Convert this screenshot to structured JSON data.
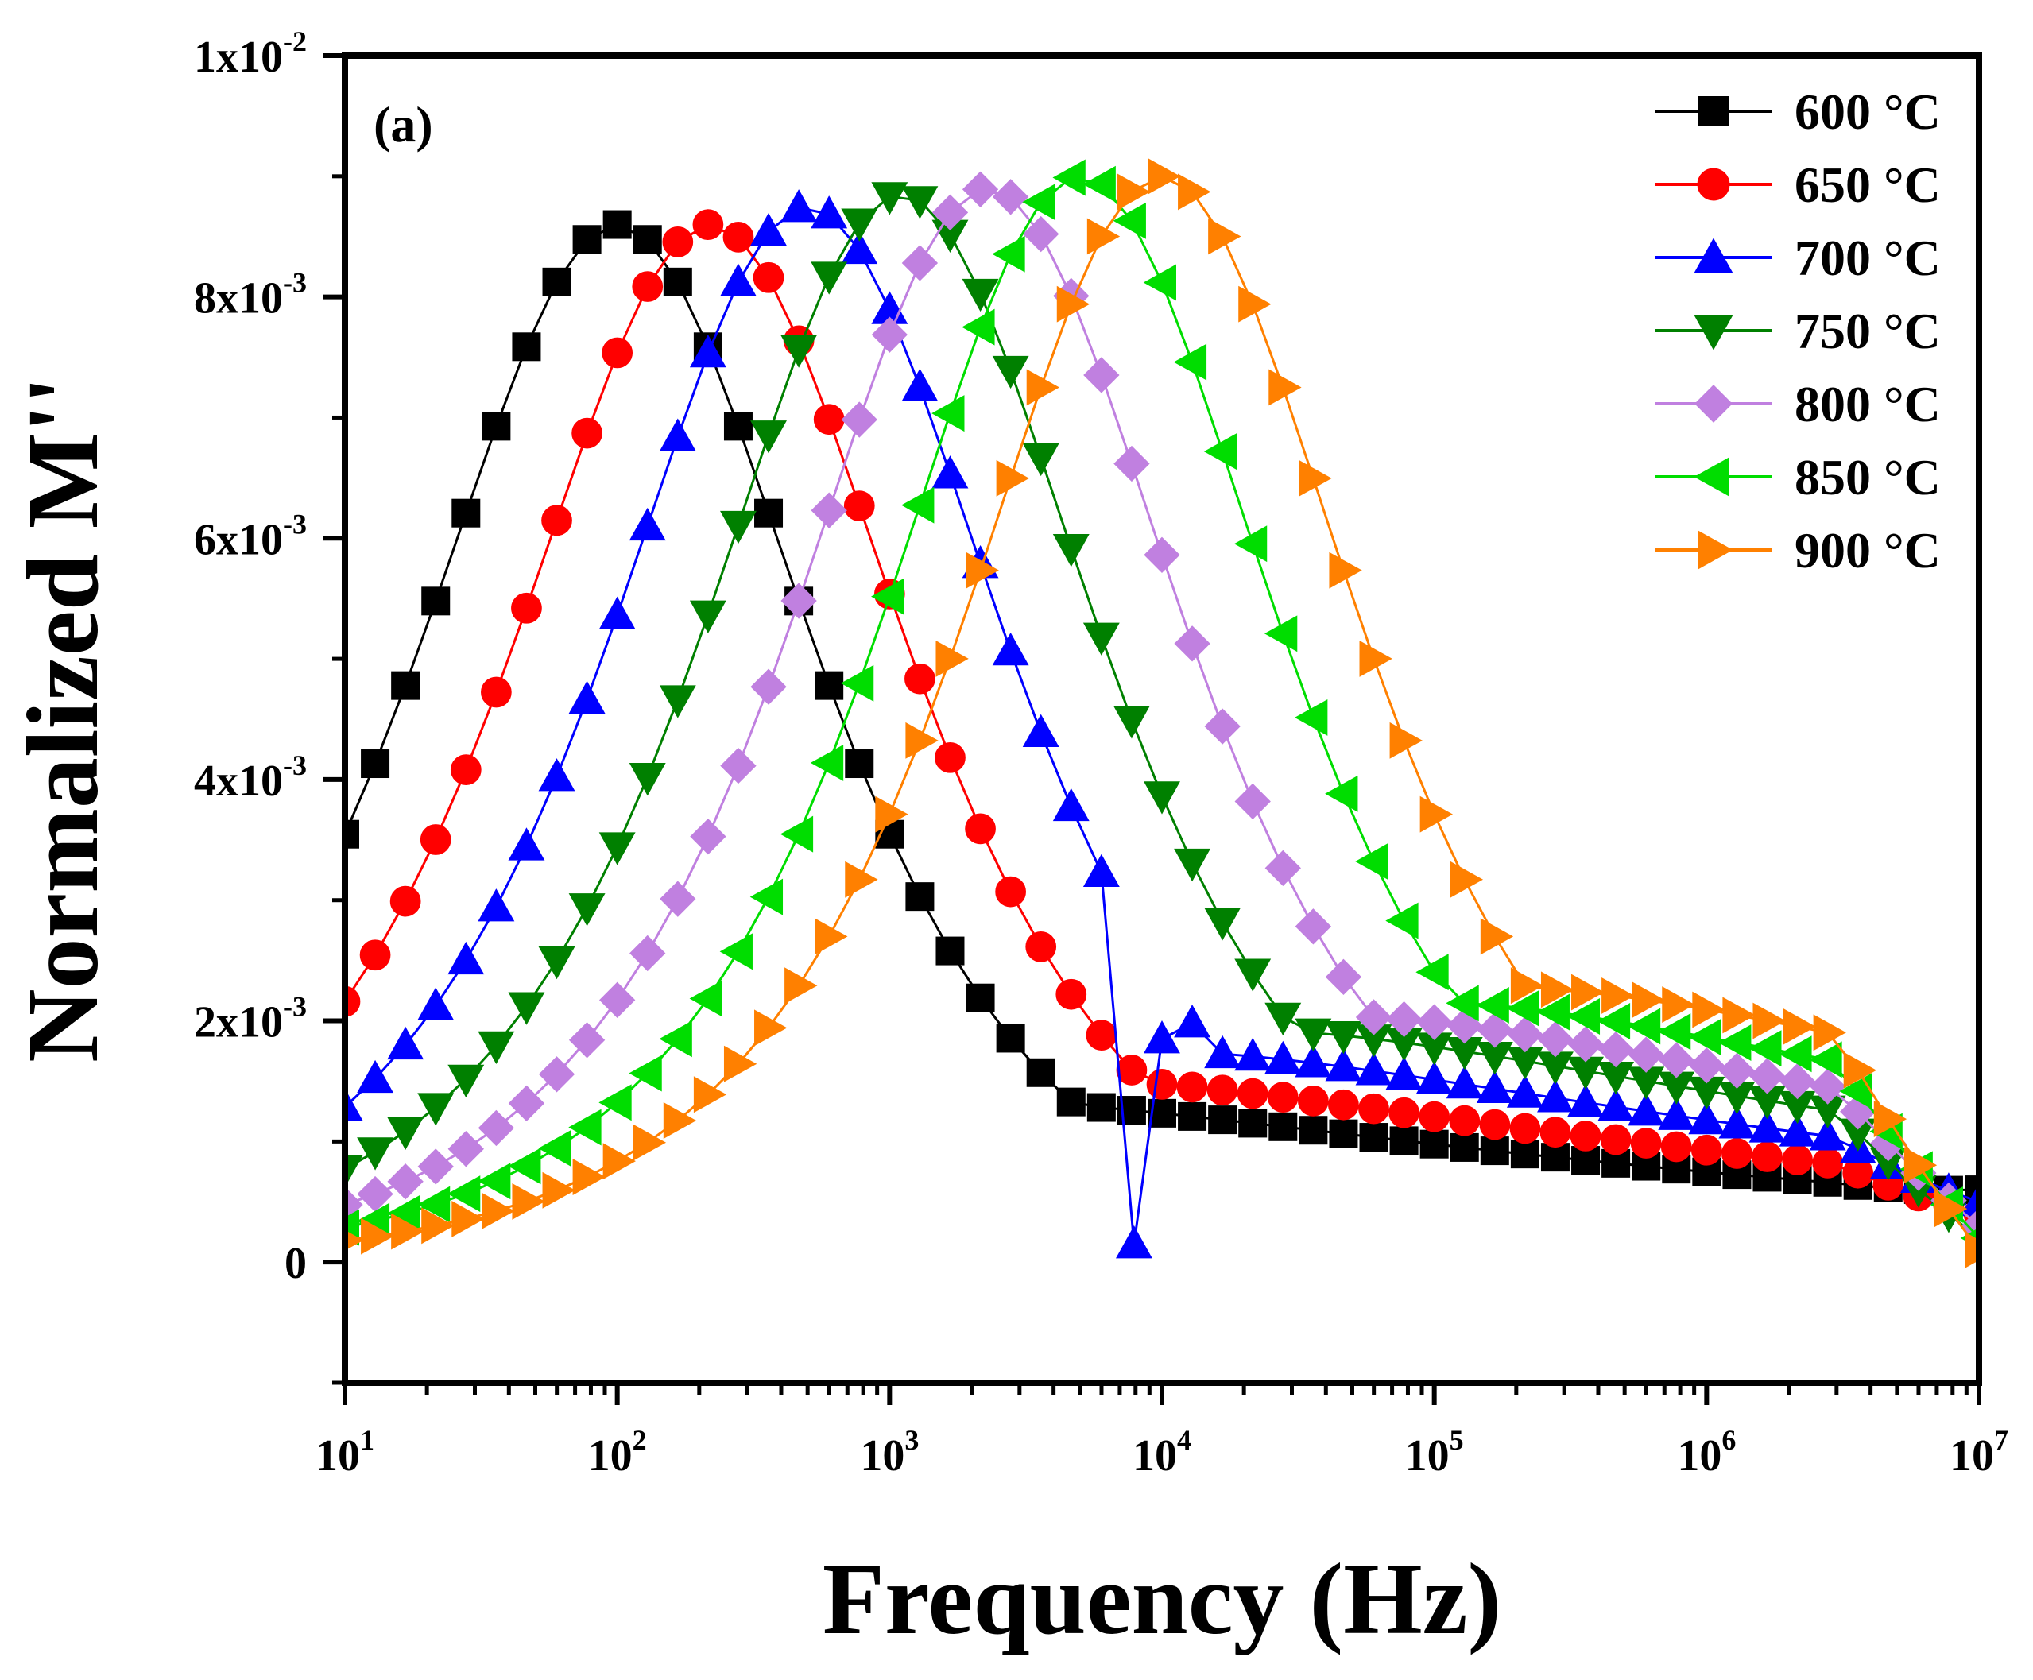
{
  "chart_data": {
    "type": "line",
    "title": "",
    "panel_label": "(a)",
    "xlabel": "Frequency (Hz)",
    "ylabel": "Normalized M''",
    "xscale": "log",
    "xlim": [
      10,
      10000000
    ],
    "ylim": [
      -0.001,
      0.01
    ],
    "x_ticks": [
      {
        "value": 10,
        "base": "10",
        "exp": "1"
      },
      {
        "value": 100,
        "base": "10",
        "exp": "2"
      },
      {
        "value": 1000,
        "base": "10",
        "exp": "3"
      },
      {
        "value": 10000,
        "base": "10",
        "exp": "4"
      },
      {
        "value": 100000,
        "base": "10",
        "exp": "5"
      },
      {
        "value": 1000000,
        "base": "10",
        "exp": "6"
      },
      {
        "value": 10000000,
        "base": "10",
        "exp": "7"
      }
    ],
    "y_ticks": [
      {
        "value": 0,
        "base": "0",
        "exp": ""
      },
      {
        "value": 0.002,
        "base": "2x10",
        "exp": "-3"
      },
      {
        "value": 0.004,
        "base": "4x10",
        "exp": "-3"
      },
      {
        "value": 0.006,
        "base": "6x10",
        "exp": "-3"
      },
      {
        "value": 0.008,
        "base": "8x10",
        "exp": "-3"
      },
      {
        "value": 0.01,
        "base": "1x10",
        "exp": "-2"
      }
    ],
    "legend_position": "top-right",
    "series": [
      {
        "name": "600 °C",
        "color": "#000000",
        "marker": "square",
        "peak_freq": 100,
        "peak_value": 0.0086,
        "width": 0.75,
        "tail": 0.0023,
        "lowcut": 0.0004,
        "end": 0.0006
      },
      {
        "name": "650 °C",
        "color": "#ff0000",
        "marker": "circle",
        "peak_freq": 220,
        "peak_value": 0.0086,
        "width": 0.75,
        "tail": 0.0026,
        "lowcut": 0.0007,
        "end": 0.0004
      },
      {
        "name": "700 °C",
        "color": "#0000ff",
        "marker": "triangle-up",
        "peak_freq": 500,
        "peak_value": 0.00875,
        "width": 0.75,
        "tail": 0.003,
        "lowcut": 0.0012,
        "end": 0.0005
      },
      {
        "name": "750 °C",
        "color": "#008000",
        "marker": "triangle-down",
        "peak_freq": 1100,
        "peak_value": 0.00885,
        "width": 0.75,
        "tail": 0.0033,
        "lowcut": 0.0016,
        "end": 0.0002
      },
      {
        "name": "800 °C",
        "color": "#c080e0",
        "marker": "diamond",
        "peak_freq": 2300,
        "peak_value": 0.0089,
        "width": 0.75,
        "tail": 0.0035,
        "lowcut": 0.002,
        "end": 0.0003
      },
      {
        "name": "850 °C",
        "color": "#00dd00",
        "marker": "triangle-left",
        "peak_freq": 5000,
        "peak_value": 0.009,
        "width": 0.75,
        "tail": 0.0037,
        "lowcut": 0.0025,
        "end": 0.0002
      },
      {
        "name": "900 °C",
        "color": "#ff8000",
        "marker": "triangle-right",
        "peak_freq": 10000,
        "peak_value": 0.009,
        "width": 0.75,
        "tail": 0.0039,
        "lowcut": 0.003,
        "end": 0.0001
      }
    ],
    "anomalies": [
      {
        "series": 2,
        "points": [
          [
            7900,
            0.00015
          ],
          [
            10000,
            0.00185
          ]
        ]
      }
    ]
  }
}
